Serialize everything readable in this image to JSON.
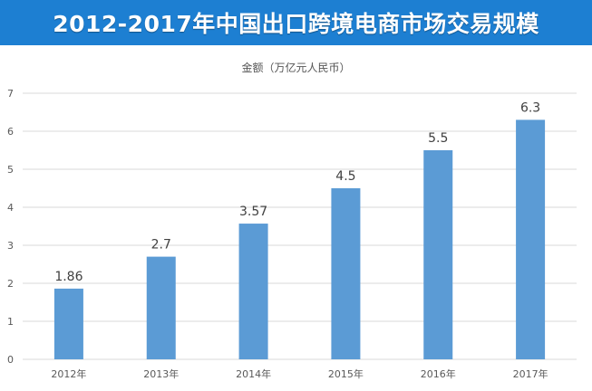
{
  "header": {
    "title": "2012-2017年中国出口跨境电商市场交易规模"
  },
  "chart_data": {
    "type": "bar",
    "title": "2012-2017年中国出口跨境电商市场交易规模",
    "ylabel": "金额（万亿元人民币）",
    "xlabel": "",
    "categories": [
      "2012年",
      "2013年",
      "2014年",
      "2015年",
      "2016年",
      "2017年"
    ],
    "values": [
      1.86,
      2.7,
      3.57,
      4.5,
      5.5,
      6.3
    ],
    "value_labels": [
      "1.86",
      "2.7",
      "3.57",
      "4.5",
      "5.5",
      "6.3"
    ],
    "ylim": [
      0,
      7
    ],
    "yticks": [
      "0",
      "1",
      "2",
      "3",
      "4",
      "5",
      "6",
      "7"
    ],
    "grid": true,
    "legend": "none",
    "bar_color": "#5b9bd5",
    "grid_color": "#d9d9d9"
  }
}
